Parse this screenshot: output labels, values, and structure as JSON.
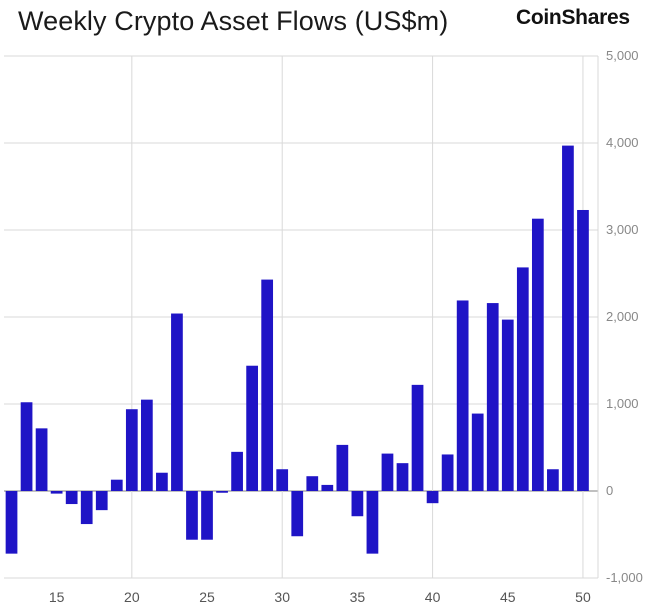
{
  "header": {
    "title": "Weekly Crypto Asset Flows (US$m)",
    "brand": "CoinShares"
  },
  "colors": {
    "bar": "#1f14c6",
    "grid": "#d9d9d9",
    "zero_line": "#9a9a9a"
  },
  "chart_data": {
    "type": "bar",
    "title": "Weekly Crypto Asset Flows (US$m)",
    "xlabel": "",
    "ylabel": "US$m",
    "grid": true,
    "ylim": [
      -1000,
      5000
    ],
    "xlim": [
      11.5,
      51
    ],
    "y_ticks": [
      5000,
      4000,
      3000,
      2000,
      1000,
      0,
      -1000
    ],
    "y_tick_labels": [
      "5,000",
      "4,000",
      "3,000",
      "2,000",
      "1,000",
      "0",
      "-1,000"
    ],
    "x_ticks": [
      15,
      20,
      25,
      30,
      35,
      40,
      45,
      50
    ],
    "x_tick_labels": [
      "15",
      "20",
      "25",
      "30",
      "35",
      "40",
      "45",
      "50"
    ],
    "x_grid": [
      20,
      30,
      40,
      50
    ],
    "categories": [
      12,
      13,
      14,
      15,
      16,
      17,
      18,
      19,
      20,
      21,
      22,
      23,
      24,
      25,
      26,
      27,
      28,
      29,
      30,
      31,
      32,
      33,
      34,
      35,
      36,
      37,
      38,
      39,
      40,
      41,
      42,
      43,
      44,
      45,
      46,
      47,
      48,
      49,
      50
    ],
    "values": [
      -720,
      1020,
      720,
      -30,
      -150,
      -380,
      -220,
      130,
      940,
      1050,
      210,
      2040,
      -560,
      -560,
      -20,
      450,
      1440,
      2430,
      250,
      -520,
      170,
      70,
      530,
      -290,
      -720,
      430,
      320,
      1220,
      -140,
      420,
      2190,
      890,
      2160,
      1970,
      2570,
      3130,
      250,
      3970,
      3230
    ]
  }
}
